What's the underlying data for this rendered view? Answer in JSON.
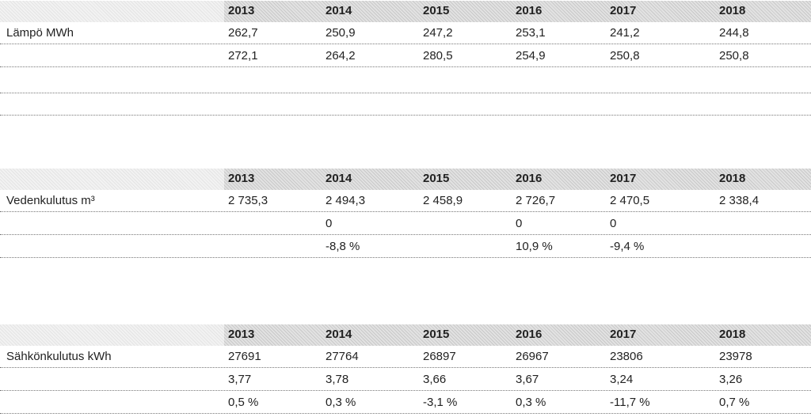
{
  "tables": [
    {
      "header": [
        "2013",
        "2014",
        "2015",
        "2016",
        "2017",
        "2018"
      ],
      "rows": [
        {
          "label": "Lämpö MWh",
          "cells": [
            "262,7",
            "250,9",
            "247,2",
            "253,1",
            "241,2",
            "244,8"
          ]
        },
        {
          "label": null,
          "cells": [
            "272,1",
            "264,2",
            "280,5",
            "254,9",
            "250,8",
            "250,8"
          ]
        }
      ]
    },
    {
      "header": [
        "2013",
        "2014",
        "2015",
        "2016",
        "2017",
        "2018"
      ],
      "rows": [
        {
          "label": "Vedenkulutus m³",
          "cells": [
            "2 735,3",
            "2 494,3",
            "2 458,9",
            "2 726,7",
            "2 470,5",
            "2 338,4"
          ]
        },
        {
          "label": null,
          "cells": [
            null,
            "0",
            null,
            "0",
            "0",
            null
          ]
        },
        {
          "label": null,
          "cells": [
            null,
            "-8,8 %",
            null,
            "10,9 %",
            "-9,4 %",
            null
          ]
        }
      ]
    },
    {
      "header": [
        "2013",
        "2014",
        "2015",
        "2016",
        "2017",
        "2018"
      ],
      "rows": [
        {
          "label": "Sähkönkulutus kWh",
          "cells": [
            "27691",
            "27764",
            "26897",
            "26967",
            "23806",
            "23978"
          ]
        },
        {
          "label": null,
          "cells": [
            "3,77",
            "3,78",
            "3,66",
            "3,67",
            "3,24",
            "3,26"
          ]
        },
        {
          "label": null,
          "cells": [
            "0,5 %",
            "0,3 %",
            "-3,1 %",
            "0,3 %",
            "-11,7 %",
            "0,7 %"
          ]
        }
      ]
    }
  ]
}
